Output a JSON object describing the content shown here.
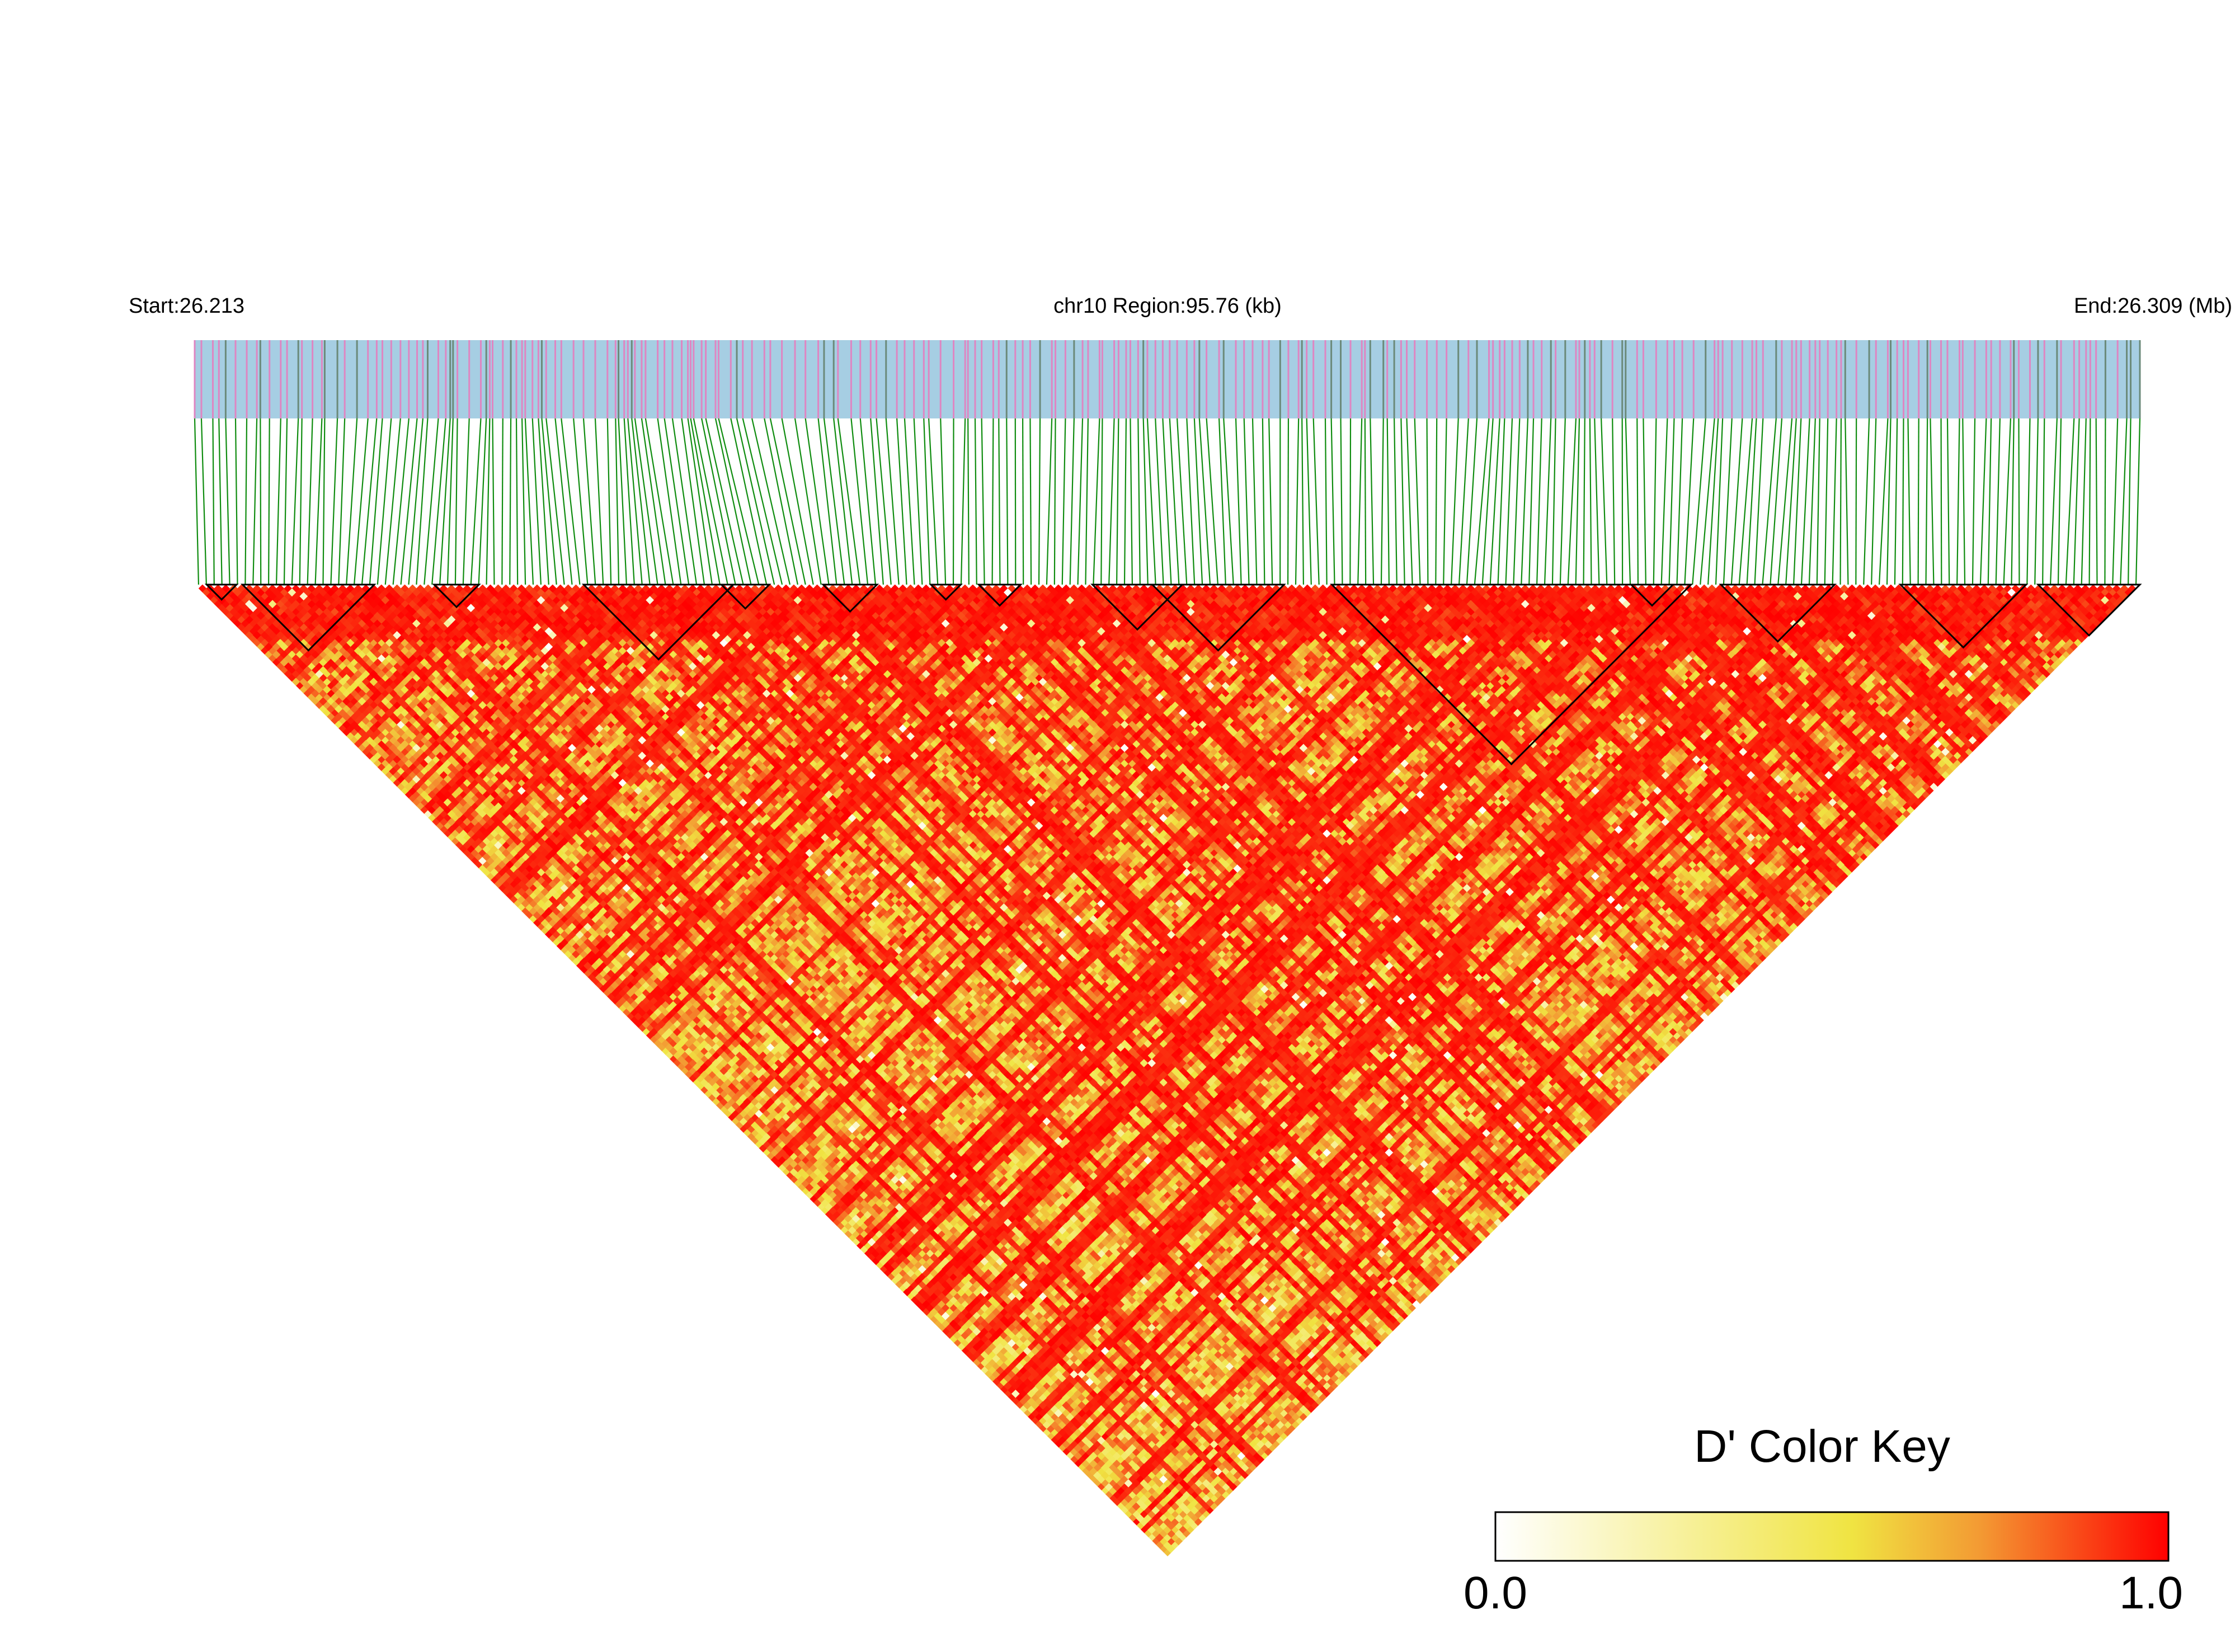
{
  "header": {
    "start_label": "Start:26.213",
    "region_label": "chr10 Region:95.76 (kb)",
    "end_label": "End:26.309 (Mb)"
  },
  "color_key": {
    "title": "D' Color Key",
    "min_label": "0.0",
    "max_label": "1.0",
    "stops": [
      "#ffffff",
      "#f0e442",
      "#f39a33",
      "#ff0000"
    ]
  },
  "colors": {
    "track_blue": "#a6cee3",
    "track_pink": "#de86c2",
    "track_dark": "#6b8a7a",
    "connector_green": "#0f8c0f",
    "block_outline": "#000000"
  },
  "chart_data": {
    "type": "heatmap",
    "description_scope": "LD heatmap of pairwise D' between SNPs",
    "chromosome": "chr10",
    "region_start_mb": 26.213,
    "region_end_mb": 26.309,
    "region_length_kb": 95.76,
    "value_name": "D'",
    "value_range": [
      0.0,
      1.0
    ],
    "snp_count_approx": 250,
    "ld_blocks_snp_index_ranges": [
      [
        4,
        14
      ],
      [
        16,
        60
      ],
      [
        80,
        95
      ],
      [
        130,
        180
      ],
      [
        176,
        192
      ],
      [
        210,
        228
      ],
      [
        246,
        256
      ],
      [
        262,
        276
      ],
      [
        300,
        330
      ],
      [
        320,
        364
      ],
      [
        380,
        500
      ],
      [
        480,
        494
      ],
      [
        510,
        548
      ],
      [
        570,
        612
      ],
      [
        616,
        650
      ]
    ]
  }
}
